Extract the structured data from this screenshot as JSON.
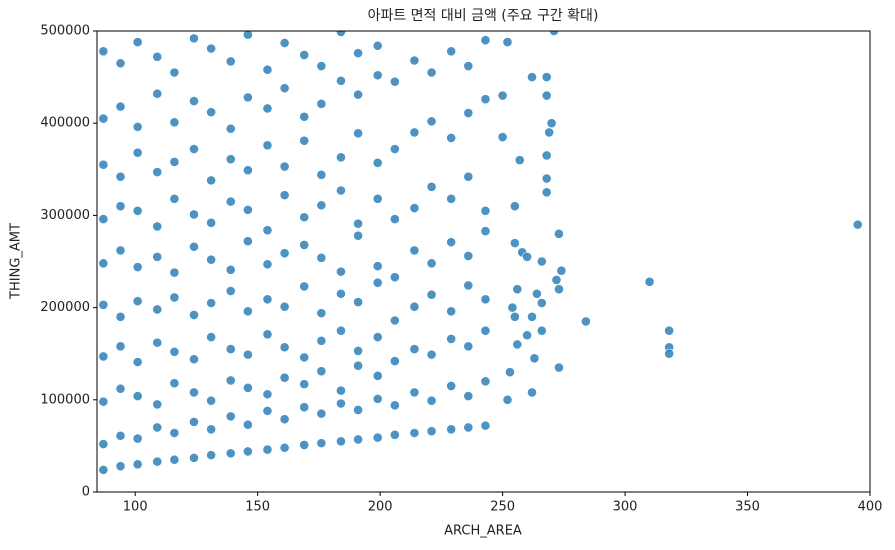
{
  "chart_data": {
    "type": "scatter",
    "title": "아파트 면적 대비 금액 (주요 구간 확대)",
    "x_label": "ARCH_AREA",
    "y_label": "THING_AMT",
    "color": "#1f77b4",
    "xlim": [
      84.4,
      400
    ],
    "xticks": [
      100,
      150,
      200,
      250,
      300,
      350,
      400
    ],
    "ylim": [
      0,
      500000
    ],
    "yticks": [
      0,
      100000,
      200000,
      300000,
      400000,
      500000
    ],
    "x": [
      87,
      87,
      87,
      87,
      87,
      87,
      87,
      87,
      87,
      87,
      94,
      94,
      94,
      94,
      94,
      94,
      94,
      94,
      94,
      94,
      101,
      101,
      101,
      101,
      101,
      101,
      101,
      101,
      101,
      101,
      109,
      109,
      109,
      109,
      109,
      109,
      109,
      109,
      109,
      109,
      116,
      116,
      116,
      116,
      116,
      116,
      116,
      116,
      116,
      116,
      124,
      124,
      124,
      124,
      124,
      124,
      124,
      124,
      124,
      124,
      131,
      131,
      131,
      131,
      131,
      131,
      131,
      131,
      131,
      131,
      139,
      139,
      139,
      139,
      139,
      139,
      139,
      139,
      139,
      139,
      146,
      146,
      146,
      146,
      146,
      146,
      146,
      146,
      146,
      146,
      154,
      154,
      154,
      154,
      154,
      154,
      154,
      154,
      154,
      154,
      161,
      161,
      161,
      161,
      161,
      161,
      161,
      161,
      161,
      161,
      169,
      169,
      169,
      169,
      169,
      169,
      169,
      169,
      169,
      169,
      176,
      176,
      176,
      176,
      176,
      176,
      176,
      176,
      176,
      176,
      184,
      184,
      184,
      184,
      184,
      184,
      184,
      184,
      184,
      184,
      191,
      191,
      191,
      191,
      191,
      191,
      191,
      191,
      191,
      191,
      199,
      199,
      199,
      199,
      199,
      199,
      199,
      199,
      199,
      199,
      206,
      206,
      206,
      206,
      206,
      206,
      206,
      206,
      214,
      214,
      214,
      214,
      214,
      214,
      214,
      214,
      221,
      221,
      221,
      221,
      221,
      221,
      221,
      221,
      229,
      229,
      229,
      229,
      229,
      229,
      229,
      229,
      236,
      236,
      236,
      236,
      236,
      236,
      236,
      236,
      243,
      243,
      243,
      243,
      243,
      243,
      243,
      243,
      395,
      310,
      318,
      318,
      318,
      284,
      273,
      273,
      274,
      273,
      272,
      270,
      268,
      268,
      269,
      268,
      268,
      268,
      262,
      257,
      252,
      255,
      250,
      250,
      255,
      258,
      260,
      256,
      254,
      255,
      256,
      262,
      263,
      252,
      253,
      266,
      266,
      266,
      260,
      271,
      264,
      262
    ],
    "values": [
      24000,
      52000,
      98000,
      147000,
      203000,
      248000,
      296000,
      355000,
      405000,
      478000,
      28000,
      61000,
      112000,
      158000,
      190000,
      262000,
      310000,
      342000,
      418000,
      465000,
      30000,
      58000,
      104000,
      141000,
      207000,
      244000,
      305000,
      368000,
      396000,
      488000,
      33000,
      70000,
      95000,
      162000,
      198000,
      255000,
      288000,
      347000,
      432000,
      472000,
      35000,
      64000,
      118000,
      152000,
      211000,
      238000,
      318000,
      358000,
      401000,
      455000,
      37000,
      76000,
      108000,
      144000,
      192000,
      266000,
      301000,
      372000,
      424000,
      492000,
      40000,
      68000,
      99000,
      168000,
      205000,
      252000,
      292000,
      338000,
      412000,
      481000,
      42000,
      82000,
      121000,
      155000,
      218000,
      241000,
      315000,
      361000,
      394000,
      467000,
      44000,
      73000,
      113000,
      149000,
      196000,
      272000,
      306000,
      349000,
      428000,
      496000,
      46000,
      88000,
      106000,
      171000,
      209000,
      247000,
      284000,
      376000,
      416000,
      458000,
      48000,
      79000,
      124000,
      157000,
      201000,
      259000,
      322000,
      353000,
      438000,
      487000,
      51000,
      92000,
      117000,
      146000,
      223000,
      268000,
      298000,
      381000,
      407000,
      474000,
      53000,
      85000,
      131000,
      164000,
      194000,
      254000,
      311000,
      344000,
      421000,
      462000,
      55000,
      96000,
      110000,
      175000,
      215000,
      239000,
      327000,
      363000,
      446000,
      499000,
      57000,
      89000,
      137000,
      153000,
      206000,
      278000,
      291000,
      389000,
      431000,
      476000,
      59000,
      101000,
      126000,
      168000,
      227000,
      245000,
      318000,
      357000,
      452000,
      484000,
      62000,
      94000,
      142000,
      186000,
      233000,
      296000,
      372000,
      445000,
      64000,
      108000,
      155000,
      201000,
      262000,
      308000,
      390000,
      468000,
      66000,
      99000,
      149000,
      214000,
      248000,
      331000,
      402000,
      455000,
      68000,
      115000,
      166000,
      196000,
      271000,
      318000,
      384000,
      478000,
      70000,
      104000,
      158000,
      224000,
      256000,
      342000,
      411000,
      462000,
      72000,
      120000,
      175000,
      209000,
      283000,
      305000,
      426000,
      490000,
      290000,
      228000,
      175000,
      157000,
      150000,
      185000,
      135000,
      280000,
      240000,
      220000,
      230000,
      400000,
      430000,
      450000,
      390000,
      365000,
      340000,
      325000,
      450000,
      360000,
      488000,
      310000,
      430000,
      385000,
      270000,
      260000,
      255000,
      220000,
      200000,
      190000,
      160000,
      108000,
      145000,
      100000,
      130000,
      250000,
      205000,
      175000,
      170000,
      500000,
      215000,
      190000
    ]
  }
}
